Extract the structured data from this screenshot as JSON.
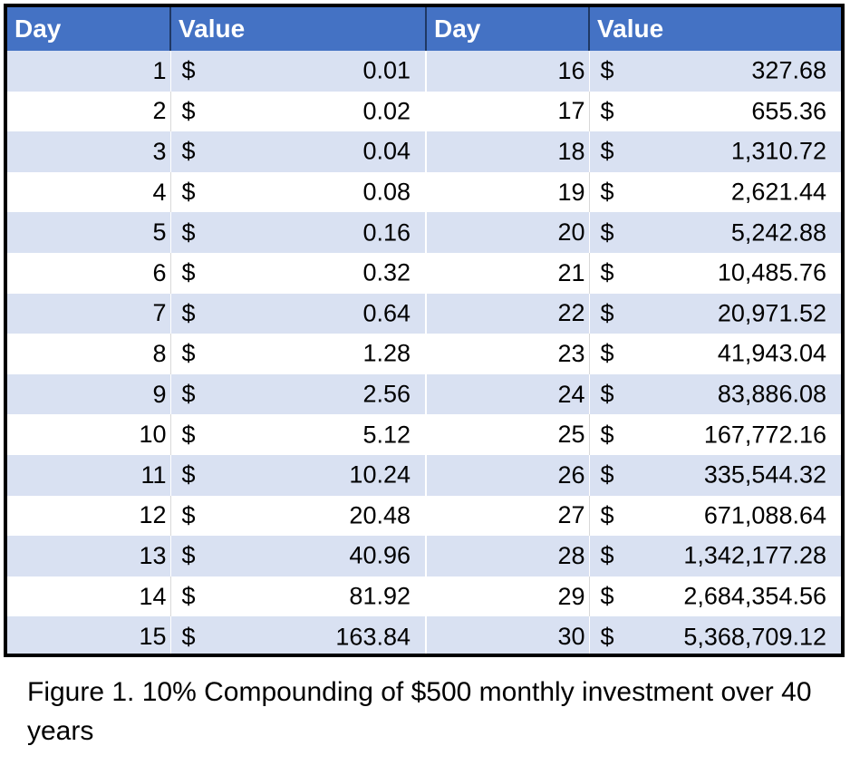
{
  "table": {
    "headers": [
      "Day",
      "Value",
      "Day",
      "Value"
    ],
    "currency_symbol": "$",
    "rows": [
      {
        "day_a": "1",
        "value_a": "0.01",
        "day_b": "16",
        "value_b": "327.68"
      },
      {
        "day_a": "2",
        "value_a": "0.02",
        "day_b": "17",
        "value_b": "655.36"
      },
      {
        "day_a": "3",
        "value_a": "0.04",
        "day_b": "18",
        "value_b": "1,310.72"
      },
      {
        "day_a": "4",
        "value_a": "0.08",
        "day_b": "19",
        "value_b": "2,621.44"
      },
      {
        "day_a": "5",
        "value_a": "0.16",
        "day_b": "20",
        "value_b": "5,242.88"
      },
      {
        "day_a": "6",
        "value_a": "0.32",
        "day_b": "21",
        "value_b": "10,485.76"
      },
      {
        "day_a": "7",
        "value_a": "0.64",
        "day_b": "22",
        "value_b": "20,971.52"
      },
      {
        "day_a": "8",
        "value_a": "1.28",
        "day_b": "23",
        "value_b": "41,943.04"
      },
      {
        "day_a": "9",
        "value_a": "2.56",
        "day_b": "24",
        "value_b": "83,886.08"
      },
      {
        "day_a": "10",
        "value_a": "5.12",
        "day_b": "25",
        "value_b": "167,772.16"
      },
      {
        "day_a": "11",
        "value_a": "10.24",
        "day_b": "26",
        "value_b": "335,544.32"
      },
      {
        "day_a": "12",
        "value_a": "20.48",
        "day_b": "27",
        "value_b": "671,088.64"
      },
      {
        "day_a": "13",
        "value_a": "40.96",
        "day_b": "28",
        "value_b": "1,342,177.28"
      },
      {
        "day_a": "14",
        "value_a": "81.92",
        "day_b": "29",
        "value_b": "2,684,354.56"
      },
      {
        "day_a": "15",
        "value_a": "163.84",
        "day_b": "30",
        "value_b": "5,368,709.12"
      }
    ]
  },
  "caption": "Figure 1. 10% Compounding of $500 monthly investment over 40 years",
  "colors": {
    "header_background": "#4472c4",
    "header_text": "#ffffff",
    "band_row": "#d9e1f2",
    "plain_row": "#ffffff",
    "frame": "#000000"
  }
}
